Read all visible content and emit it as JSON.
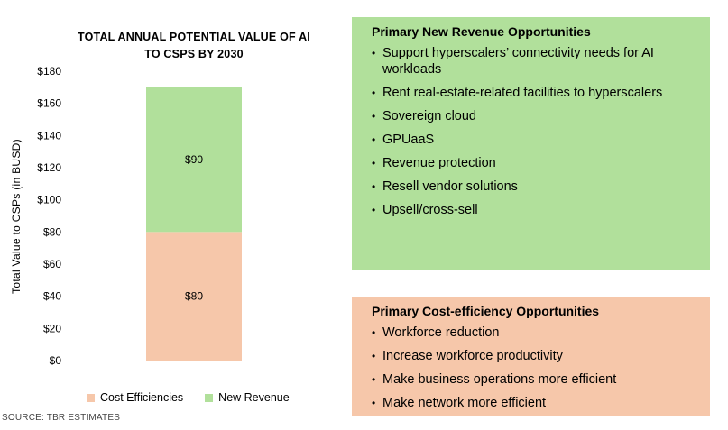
{
  "chart_data": {
    "type": "bar",
    "stacked": true,
    "title": "TOTAL ANNUAL POTENTIAL VALUE OF AI TO CSPS BY 2030",
    "title_lines": [
      "TOTAL ANNUAL POTENTIAL VALUE OF AI",
      "TO CSPS BY 2030"
    ],
    "ylabel": "Total Value to CSPs (in BUSD)",
    "ylim": [
      0,
      180
    ],
    "yticks": [
      "$180",
      "$160",
      "$140",
      "$120",
      "$100",
      "$80",
      "$60",
      "$40",
      "$20",
      "$0"
    ],
    "ytick_values": [
      180,
      160,
      140,
      120,
      100,
      80,
      60,
      40,
      20,
      0
    ],
    "categories": [
      ""
    ],
    "series": [
      {
        "name": "Cost Efficiencies",
        "values": [
          80
        ],
        "label": "$80",
        "color": "#f6c7aa"
      },
      {
        "name": "New Revenue",
        "values": [
          90
        ],
        "label": "$90",
        "color": "#b1e09b"
      }
    ],
    "grid": false,
    "legend_position": "bottom"
  },
  "source": "SOURCE: TBR ESTIMATES",
  "panels": {
    "revenue": {
      "title": "Primary New Revenue Opportunities",
      "items": [
        "Support hyperscalers’ connectivity needs for AI workloads",
        "Rent real-estate-related facilities to hyperscalers",
        "Sovereign cloud",
        "GPUaaS",
        "Revenue protection",
        "Resell vendor solutions",
        "Upsell/cross-sell"
      ],
      "color": "#b1e09b"
    },
    "cost": {
      "title": "Primary Cost-efficiency Opportunities",
      "items": [
        "Workforce reduction",
        "Increase workforce productivity",
        "Make business operations more efficient",
        "Make network more efficient"
      ],
      "color": "#f6c7aa"
    }
  }
}
